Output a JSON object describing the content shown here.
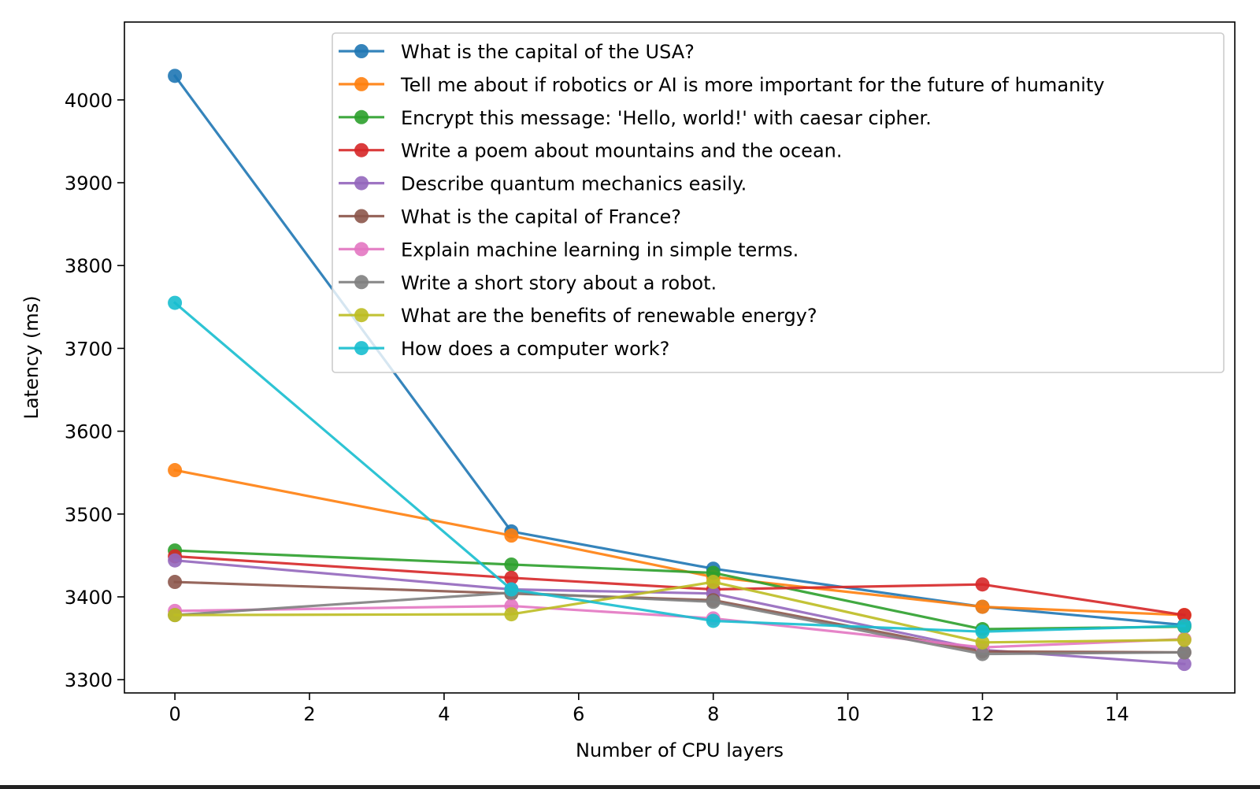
{
  "chart_data": {
    "type": "line",
    "title": "",
    "xlabel": "Number of CPU layers",
    "ylabel": "Latency (ms)",
    "xlim": [
      -0.75,
      15.75
    ],
    "ylim": [
      3284,
      4094
    ],
    "xticks": [
      0,
      2,
      4,
      6,
      8,
      10,
      12,
      14
    ],
    "xtick_labels": [
      "0",
      "2",
      "4",
      "6",
      "8",
      "10",
      "12",
      "14"
    ],
    "yticks": [
      3300,
      3400,
      3500,
      3600,
      3700,
      3800,
      3900,
      4000
    ],
    "ytick_labels": [
      "3300",
      "3400",
      "3500",
      "3600",
      "3700",
      "3800",
      "3900",
      "4000"
    ],
    "grid": false,
    "legend_position": "upper right",
    "x": [
      0,
      5,
      8,
      12,
      15
    ],
    "series": [
      {
        "name": "What is the capital of the USA?",
        "color": "#1f77b4",
        "values": [
          4029,
          3479,
          3434,
          3388,
          3366
        ]
      },
      {
        "name": "Tell me about if robotics or AI is more important for the future of humanity",
        "color": "#ff7f0e",
        "values": [
          3553,
          3474,
          3424,
          3388,
          3378
        ]
      },
      {
        "name": "Encrypt this message: 'Hello, world!' with caesar cipher.",
        "color": "#2ca02c",
        "values": [
          3456,
          3439,
          3429,
          3361,
          3364
        ]
      },
      {
        "name": "Write a poem about mountains and the ocean.",
        "color": "#d62728",
        "values": [
          3449,
          3423,
          3409,
          3415,
          3378
        ]
      },
      {
        "name": "Describe quantum mechanics easily.",
        "color": "#9467bd",
        "values": [
          3444,
          3409,
          3404,
          3336,
          3319
        ]
      },
      {
        "name": "What is the capital of France?",
        "color": "#8c564b",
        "values": [
          3418,
          3404,
          3396,
          3334,
          3333
        ]
      },
      {
        "name": "Explain machine learning in simple terms.",
        "color": "#e377c2",
        "values": [
          3383,
          3389,
          3374,
          3339,
          3349
        ]
      },
      {
        "name": "Write a short story about a robot.",
        "color": "#7f7f7f",
        "values": [
          3378,
          3405,
          3394,
          3331,
          3333
        ]
      },
      {
        "name": "What are the benefits of renewable energy?",
        "color": "#bcbd22",
        "values": [
          3378,
          3379,
          3418,
          3345,
          3348
        ]
      },
      {
        "name": "How does a computer work?",
        "color": "#17becf",
        "values": [
          3755,
          3409,
          3371,
          3358,
          3365
        ]
      }
    ]
  }
}
